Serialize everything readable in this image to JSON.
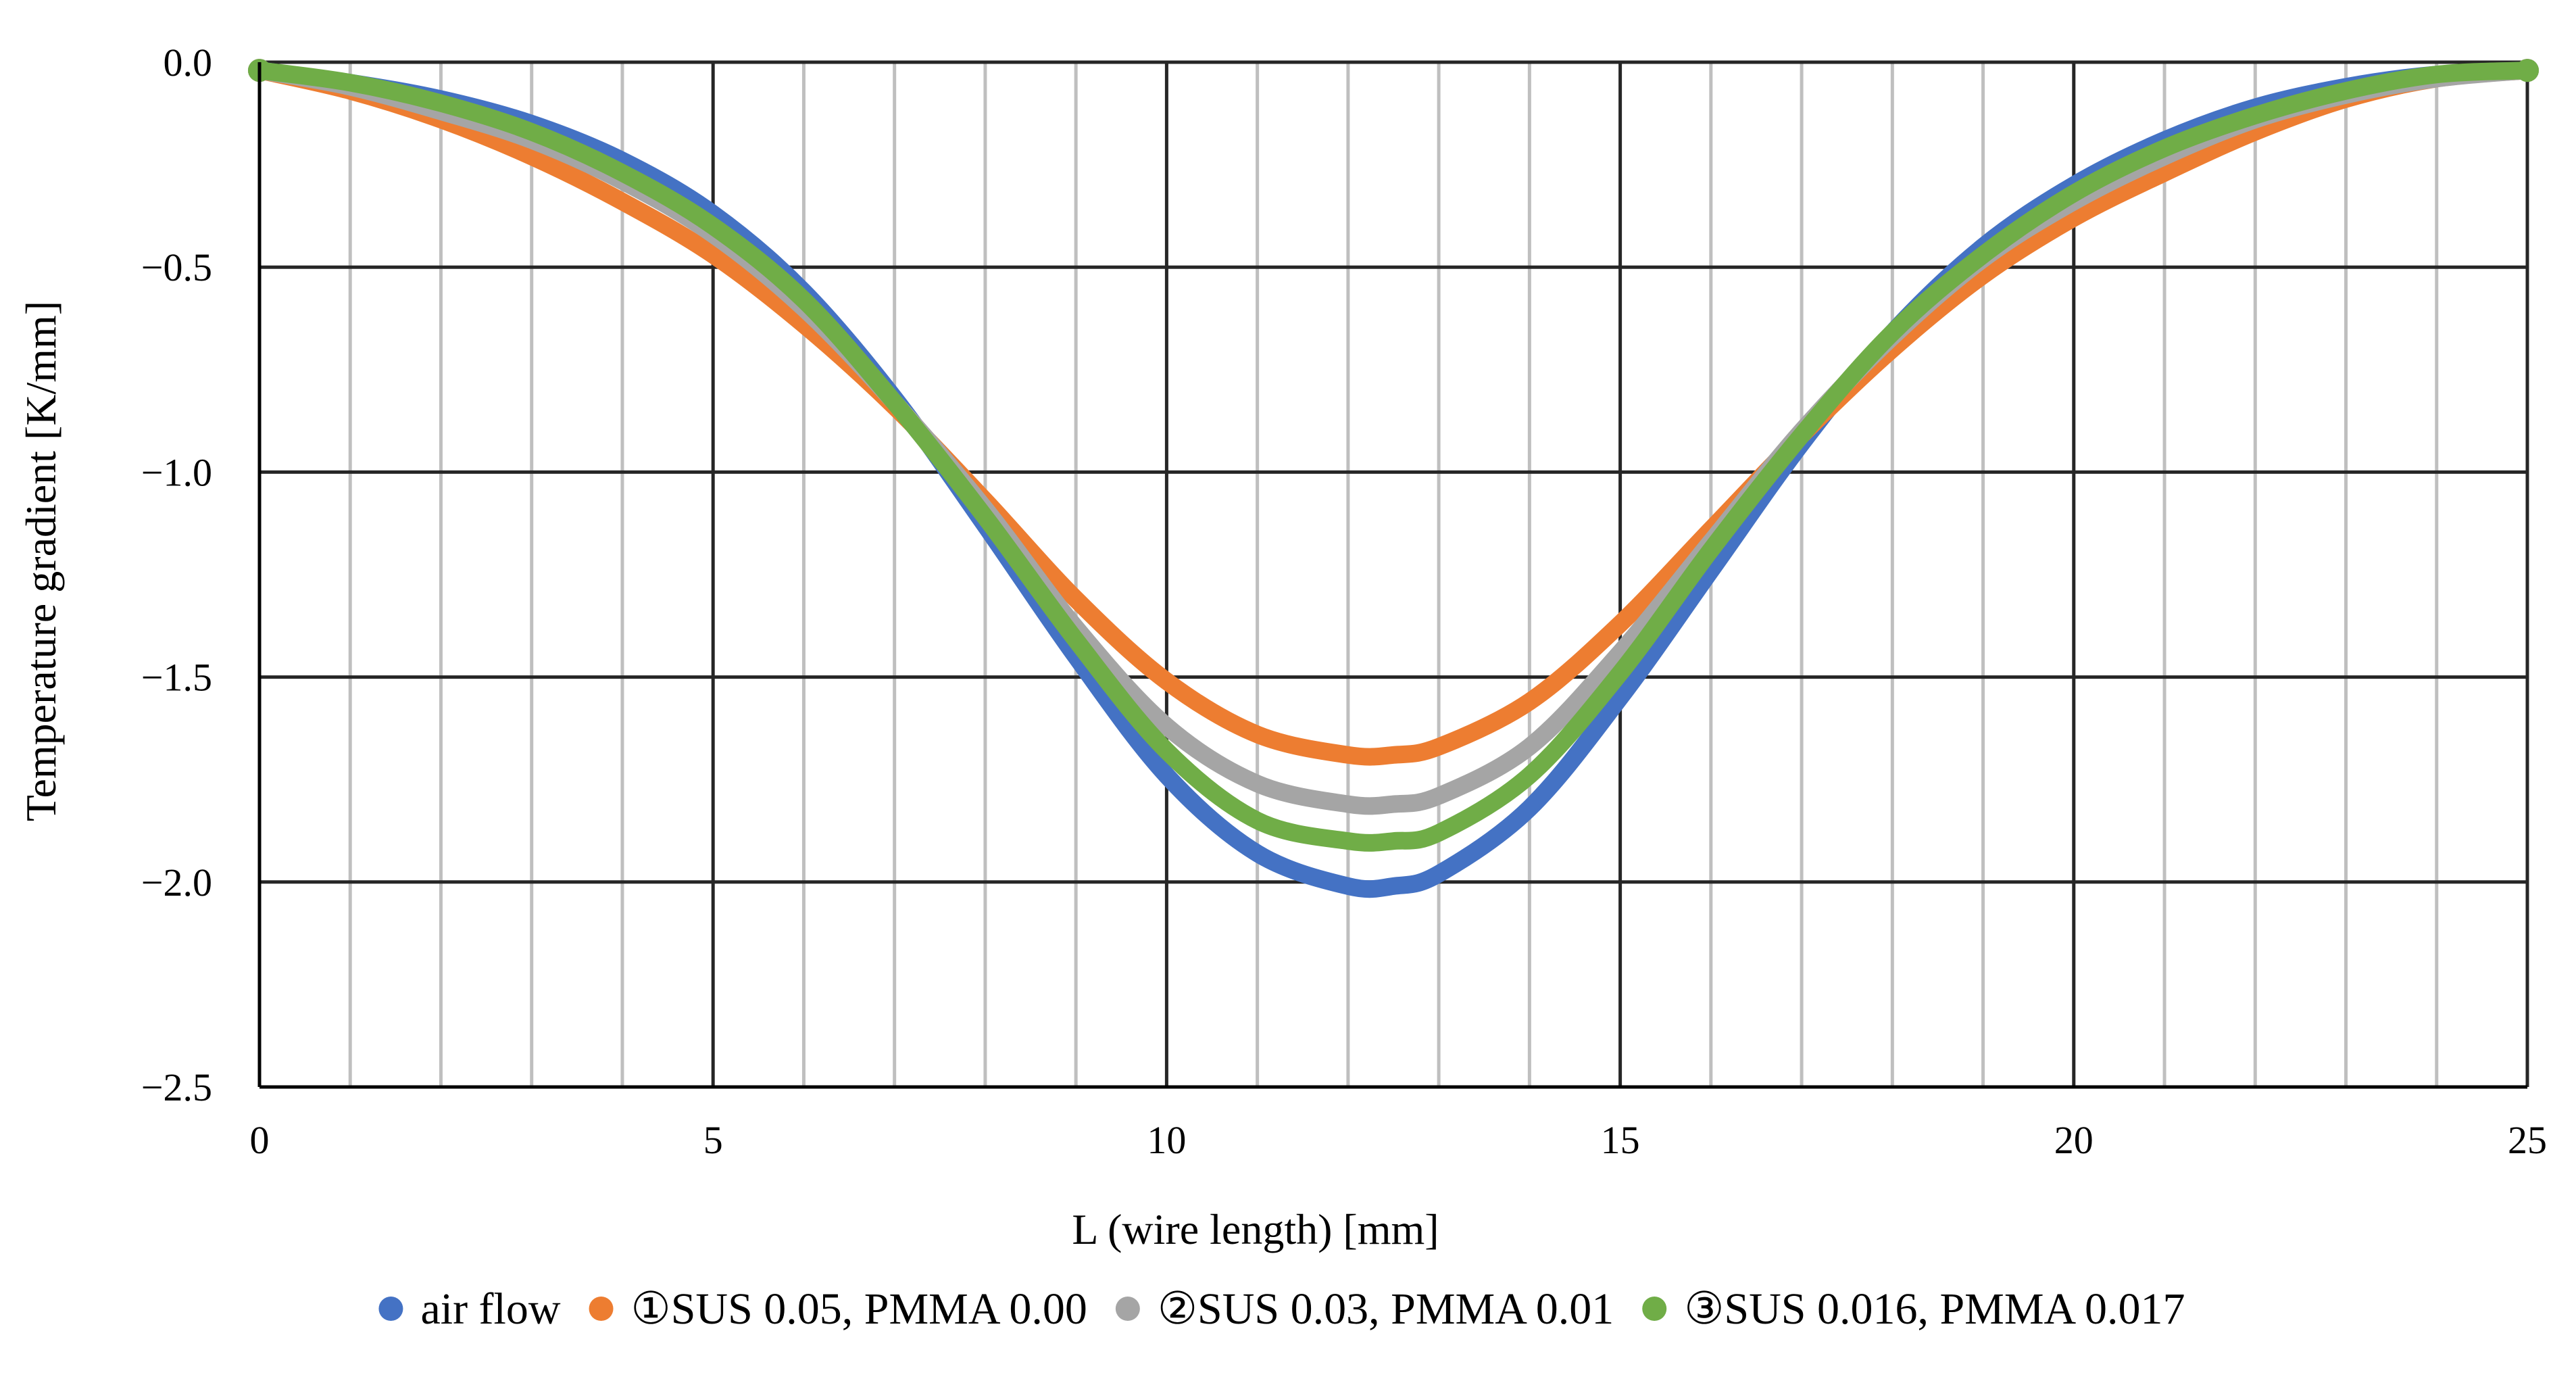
{
  "chart_data": {
    "type": "line",
    "title": "",
    "xlabel": "L (wire length) [mm]",
    "ylabel": "Temperature gradient [K/mm]",
    "xlim": [
      0,
      25
    ],
    "ylim": [
      -2.5,
      0.0
    ],
    "x_ticks": [
      0,
      5,
      10,
      15,
      20,
      25
    ],
    "x_tick_labels": [
      "0",
      "5",
      "10",
      "15",
      "20",
      "25"
    ],
    "x_minor_step": 1,
    "y_ticks": [
      0.0,
      -0.5,
      -1.0,
      -1.5,
      -2.0,
      -2.5
    ],
    "y_tick_labels": [
      "0.0",
      "−0.5",
      "−1.0",
      "−1.5",
      "−2.0",
      "−2.5"
    ],
    "grid": true,
    "legend_position": "bottom",
    "x": [
      0,
      1,
      2,
      3,
      4,
      5,
      6,
      7,
      8,
      9,
      10,
      11,
      12,
      12.5,
      13,
      14,
      15,
      16,
      17,
      18,
      19,
      20,
      21,
      22,
      23,
      24,
      25
    ],
    "series": [
      {
        "name": "air flow",
        "color": "#4472C4",
        "values": [
          -0.02,
          -0.05,
          -0.09,
          -0.15,
          -0.24,
          -0.37,
          -0.56,
          -0.82,
          -1.13,
          -1.45,
          -1.74,
          -1.93,
          -2.01,
          -2.01,
          -1.98,
          -1.82,
          -1.55,
          -1.24,
          -0.93,
          -0.66,
          -0.45,
          -0.3,
          -0.19,
          -0.11,
          -0.06,
          -0.03,
          -0.02
        ]
      },
      {
        "name": "①SUS 0.05, PMMA 0.00",
        "color": "#ED7D31",
        "values": [
          -0.02,
          -0.07,
          -0.14,
          -0.23,
          -0.34,
          -0.47,
          -0.64,
          -0.84,
          -1.07,
          -1.31,
          -1.51,
          -1.64,
          -1.69,
          -1.69,
          -1.67,
          -1.56,
          -1.37,
          -1.14,
          -0.91,
          -0.7,
          -0.52,
          -0.38,
          -0.27,
          -0.17,
          -0.09,
          -0.04,
          -0.02
        ]
      },
      {
        "name": "②SUS 0.03, PMMA 0.01",
        "color": "#A5A5A5",
        "values": [
          -0.02,
          -0.06,
          -0.12,
          -0.19,
          -0.29,
          -0.42,
          -0.6,
          -0.83,
          -1.09,
          -1.38,
          -1.62,
          -1.76,
          -1.81,
          -1.81,
          -1.79,
          -1.67,
          -1.44,
          -1.17,
          -0.9,
          -0.67,
          -0.48,
          -0.34,
          -0.23,
          -0.14,
          -0.08,
          -0.04,
          -0.02
        ]
      },
      {
        "name": "③SUS 0.016, PMMA 0.017",
        "color": "#70AD47",
        "values": [
          -0.02,
          -0.05,
          -0.1,
          -0.17,
          -0.27,
          -0.4,
          -0.58,
          -0.83,
          -1.11,
          -1.41,
          -1.68,
          -1.85,
          -1.9,
          -1.9,
          -1.88,
          -1.74,
          -1.49,
          -1.19,
          -0.91,
          -0.66,
          -0.47,
          -0.32,
          -0.21,
          -0.13,
          -0.07,
          -0.03,
          -0.02
        ]
      }
    ]
  }
}
